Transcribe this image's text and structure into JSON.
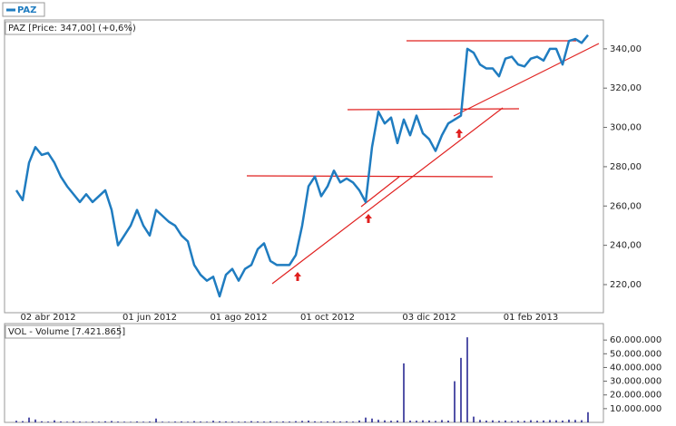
{
  "chart_data": [
    {
      "type": "line",
      "title": "PAZ [Price: 347,00] (+0,6%)",
      "categories": [
        null,
        null,
        null,
        null,
        null,
        "02 abr 2012",
        null,
        null,
        null,
        null,
        null,
        null,
        null,
        null,
        null,
        null,
        null,
        null,
        null,
        null,
        null,
        "01 jun 2012",
        null,
        null,
        null,
        null,
        null,
        null,
        null,
        null,
        null,
        null,
        null,
        null,
        null,
        "01 ago 2012",
        null,
        null,
        null,
        null,
        null,
        null,
        null,
        null,
        null,
        null,
        null,
        null,
        null,
        "01 oct 2012",
        null,
        null,
        null,
        null,
        null,
        null,
        null,
        null,
        null,
        null,
        null,
        null,
        null,
        null,
        null,
        "03 dic 2012",
        null,
        null,
        null,
        null,
        null,
        null,
        null,
        null,
        null,
        null,
        null,
        null,
        null,
        null,
        null,
        "01 feb 2013",
        null,
        null,
        null,
        null,
        null,
        null,
        null,
        null,
        null
      ],
      "series": [
        {
          "name": "PAZ",
          "color": "#1f7cc0",
          "values": [
            268,
            263,
            282,
            290,
            286,
            287,
            282,
            275,
            270,
            266,
            262,
            266,
            262,
            265,
            268,
            258,
            240,
            245,
            250,
            258,
            250,
            245,
            258,
            255,
            252,
            250,
            245,
            242,
            230,
            225,
            222,
            224,
            214,
            225,
            228,
            222,
            228,
            230,
            238,
            241,
            232,
            230,
            230,
            230,
            235,
            250,
            270,
            275,
            265,
            270,
            278,
            272,
            274,
            272,
            268,
            262,
            290,
            308,
            302,
            305,
            292,
            304,
            296,
            306,
            297,
            294,
            288,
            296,
            302,
            304,
            306,
            340,
            338,
            332,
            330,
            330,
            326,
            335,
            336,
            332,
            331,
            335,
            336,
            334,
            340,
            340,
            332,
            344,
            345,
            343,
            347
          ]
        }
      ],
      "ylim": [
        205.7,
        351
      ],
      "yticks": [
        {
          "value": 220,
          "label": "220,00"
        },
        {
          "value": 240,
          "label": "240,00"
        },
        {
          "value": 260,
          "label": "260,00"
        },
        {
          "value": 280,
          "label": "280,00"
        },
        {
          "value": 300,
          "label": "300,00"
        },
        {
          "value": 320,
          "label": "320,00"
        },
        {
          "value": 340,
          "label": "340,00"
        }
      ]
    },
    {
      "type": "bar",
      "title": "VOL - Volume [7.421.865]",
      "color": "#1a1a8c",
      "values": [
        1200000,
        900000,
        3500000,
        2100000,
        800000,
        600000,
        1500000,
        700000,
        500000,
        900000,
        600000,
        400000,
        700000,
        500000,
        800000,
        1000000,
        600000,
        500000,
        400000,
        700000,
        500000,
        600000,
        2800000,
        500000,
        400000,
        600000,
        700000,
        500000,
        900000,
        600000,
        500000,
        1200000,
        800000,
        700000,
        600000,
        500000,
        600000,
        900000,
        700000,
        600000,
        800000,
        500000,
        700000,
        600000,
        900000,
        1100000,
        1300000,
        800000,
        600000,
        700000,
        900000,
        700000,
        800000,
        600000,
        1400000,
        3500000,
        2800000,
        1900000,
        1500000,
        1200000,
        1400000,
        43000000,
        1300000,
        1200000,
        1500000,
        1400000,
        1100000,
        1700000,
        1300000,
        30000000,
        47000000,
        62000000,
        4200000,
        1800000,
        1300000,
        1500000,
        1100000,
        1400000,
        900000,
        1200000,
        1100000,
        1600000,
        1200000,
        1400000,
        1700000,
        1500000,
        1300000,
        2000000,
        1800000,
        1600000,
        7421865
      ],
      "ylim": [
        0,
        72000000
      ],
      "yticks": [
        {
          "value": 10000000,
          "label": "10.000.000"
        },
        {
          "value": 20000000,
          "label": "20.000.000"
        },
        {
          "value": 30000000,
          "label": "30.000.000"
        },
        {
          "value": 40000000,
          "label": "40.000.000"
        },
        {
          "value": 50000000,
          "label": "50.000.000"
        },
        {
          "value": 60000000,
          "label": "60.000.000"
        }
      ]
    }
  ]
}
